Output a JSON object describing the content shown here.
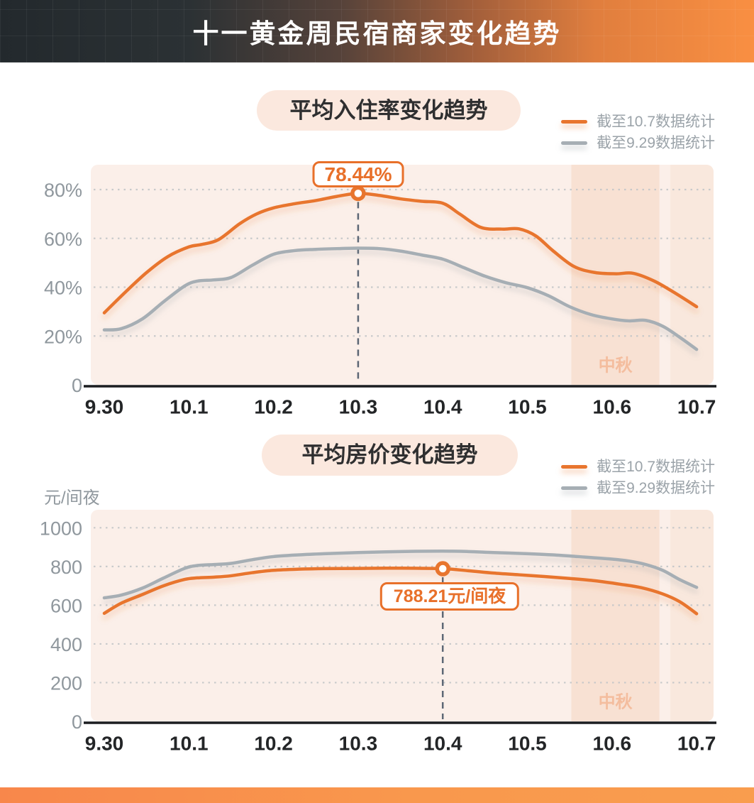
{
  "header": {
    "title": "十一黄金周民宿商家变化趋势"
  },
  "colors": {
    "accent_orange": "#E8752E",
    "series_gray": "#A6AEB4",
    "plot_bg": "#FBEFE9",
    "highlight_band": "#F8E1D3",
    "band_label": "#F4BD9E",
    "gridline": "#C3C6C8",
    "dashed_line": "#5D6775",
    "axis_line": "#1B1D20",
    "x_label": "#232527",
    "y_label": "#8F979D",
    "legend_text": "#9BA3A9",
    "annotation": "#E8702A",
    "pill_bg": "#FBE8DE",
    "footer_orange": "#F8874B"
  },
  "chart_data": [
    {
      "type": "line",
      "title": "平均入住率变化趋势",
      "ylabel": "",
      "x_unit": "days_from_9.30",
      "x_labels": [
        "9.30",
        "10.1",
        "10.2",
        "10.3",
        "10.4",
        "10.5",
        "10.6",
        "10.7"
      ],
      "y_ticks": [
        {
          "value": 0,
          "label": "0"
        },
        {
          "value": 20,
          "label": "20%"
        },
        {
          "value": 40,
          "label": "40%"
        },
        {
          "value": 60,
          "label": "60%"
        },
        {
          "value": 80,
          "label": "80%"
        }
      ],
      "y_axis_range": [
        0,
        90
      ],
      "grid": "dotted-horizontal",
      "legend_position": "top-right",
      "series": [
        {
          "name": "截至10.7数据统计",
          "color": "orange",
          "points": [
            [
              0,
              29.5
            ],
            [
              0.25,
              38
            ],
            [
              0.5,
              46
            ],
            [
              0.75,
              52.5
            ],
            [
              1,
              56.5
            ],
            [
              1.15,
              57.5
            ],
            [
              1.35,
              59.5
            ],
            [
              1.6,
              66
            ],
            [
              1.8,
              70
            ],
            [
              2,
              72.5
            ],
            [
              2.25,
              74.2
            ],
            [
              2.5,
              75.5
            ],
            [
              2.75,
              77.2
            ],
            [
              3,
              78.44
            ],
            [
              3.25,
              77.6
            ],
            [
              3.5,
              76.2
            ],
            [
              3.75,
              75.2
            ],
            [
              4,
              74.4
            ],
            [
              4.2,
              70
            ],
            [
              4.45,
              64.5
            ],
            [
              4.7,
              63.8
            ],
            [
              4.9,
              63.9
            ],
            [
              5.1,
              61
            ],
            [
              5.3,
              55
            ],
            [
              5.55,
              48.5
            ],
            [
              5.8,
              46
            ],
            [
              6.05,
              45.5
            ],
            [
              6.25,
              45.7
            ],
            [
              6.5,
              42.5
            ],
            [
              6.75,
              37.5
            ],
            [
              7,
              32
            ]
          ]
        },
        {
          "name": "截至9.29数据统计",
          "color": "gray",
          "points": [
            [
              0,
              22.5
            ],
            [
              0.2,
              23
            ],
            [
              0.45,
              27
            ],
            [
              0.7,
              34
            ],
            [
              0.95,
              40.5
            ],
            [
              1.1,
              42.5
            ],
            [
              1.3,
              43
            ],
            [
              1.5,
              44
            ],
            [
              1.75,
              49
            ],
            [
              2,
              53.5
            ],
            [
              2.25,
              55
            ],
            [
              2.5,
              55.5
            ],
            [
              2.75,
              55.8
            ],
            [
              3,
              56
            ],
            [
              3.25,
              55.8
            ],
            [
              3.5,
              54.8
            ],
            [
              3.75,
              53.2
            ],
            [
              4,
              51.5
            ],
            [
              4.25,
              48
            ],
            [
              4.5,
              44.5
            ],
            [
              4.75,
              41.8
            ],
            [
              5,
              39.8
            ],
            [
              5.25,
              36.5
            ],
            [
              5.5,
              32
            ],
            [
              5.75,
              28.8
            ],
            [
              6,
              27
            ],
            [
              6.2,
              26.2
            ],
            [
              6.4,
              26.4
            ],
            [
              6.6,
              24
            ],
            [
              6.8,
              19.5
            ],
            [
              7,
              14.5
            ]
          ]
        }
      ],
      "annotation": {
        "text": "78.44%",
        "x": 3,
        "value": 78.44,
        "series": "截至10.7数据统计"
      },
      "highlight_bands": [
        {
          "label": "中秋",
          "x_start": 5.52,
          "x_end": 6.56
        },
        {
          "label": "",
          "x_start": 6.69,
          "x_end": 7.2
        }
      ]
    },
    {
      "type": "line",
      "title": "平均房价变化趋势",
      "ylabel": "元/间夜",
      "x_unit": "days_from_9.30",
      "x_labels": [
        "9.30",
        "10.1",
        "10.2",
        "10.3",
        "10.4",
        "10.5",
        "10.6",
        "10.7"
      ],
      "y_ticks": [
        {
          "value": 0,
          "label": "0"
        },
        {
          "value": 200,
          "label": "200"
        },
        {
          "value": 400,
          "label": "400"
        },
        {
          "value": 600,
          "label": "600"
        },
        {
          "value": 800,
          "label": "800"
        },
        {
          "value": 1000,
          "label": "1000"
        }
      ],
      "y_axis_range": [
        0,
        1100
      ],
      "grid": "dotted-horizontal",
      "legend_position": "top-right",
      "series": [
        {
          "name": "截至10.7数据统计",
          "color": "orange",
          "points": [
            [
              0,
              558
            ],
            [
              0.2,
              610
            ],
            [
              0.45,
              655
            ],
            [
              0.7,
              700
            ],
            [
              0.95,
              733
            ],
            [
              1.1,
              741
            ],
            [
              1.3,
              745
            ],
            [
              1.5,
              752
            ],
            [
              1.75,
              768
            ],
            [
              2,
              780
            ],
            [
              2.3,
              786
            ],
            [
              2.6,
              789
            ],
            [
              3,
              790
            ],
            [
              3.5,
              791
            ],
            [
              4,
              788.21
            ],
            [
              4.3,
              778
            ],
            [
              4.6,
              766
            ],
            [
              4.9,
              757
            ],
            [
              5.2,
              748
            ],
            [
              5.5,
              738
            ],
            [
              5.8,
              726
            ],
            [
              6.1,
              708
            ],
            [
              6.35,
              690
            ],
            [
              6.6,
              658
            ],
            [
              6.8,
              618
            ],
            [
              7,
              556
            ]
          ]
        },
        {
          "name": "截至9.29数据统计",
          "color": "gray",
          "points": [
            [
              0,
              638
            ],
            [
              0.2,
              652
            ],
            [
              0.45,
              688
            ],
            [
              0.7,
              740
            ],
            [
              0.95,
              790
            ],
            [
              1.1,
              805
            ],
            [
              1.3,
              810
            ],
            [
              1.5,
              816
            ],
            [
              1.75,
              835
            ],
            [
              2,
              851
            ],
            [
              2.3,
              860
            ],
            [
              2.6,
              866
            ],
            [
              3,
              872
            ],
            [
              3.5,
              877
            ],
            [
              4,
              879
            ],
            [
              4.3,
              877
            ],
            [
              4.6,
              872
            ],
            [
              5,
              866
            ],
            [
              5.3,
              860
            ],
            [
              5.6,
              851
            ],
            [
              6,
              838
            ],
            [
              6.2,
              828
            ],
            [
              6.4,
              810
            ],
            [
              6.6,
              780
            ],
            [
              6.8,
              732
            ],
            [
              7,
              692
            ]
          ]
        }
      ],
      "annotation": {
        "text": "788.21元/间夜",
        "x": 4,
        "value": 788.21,
        "series": "截至10.7数据统计"
      },
      "highlight_bands": [
        {
          "label": "中秋",
          "x_start": 5.52,
          "x_end": 6.56
        },
        {
          "label": "",
          "x_start": 6.69,
          "x_end": 7.2
        }
      ]
    }
  ]
}
